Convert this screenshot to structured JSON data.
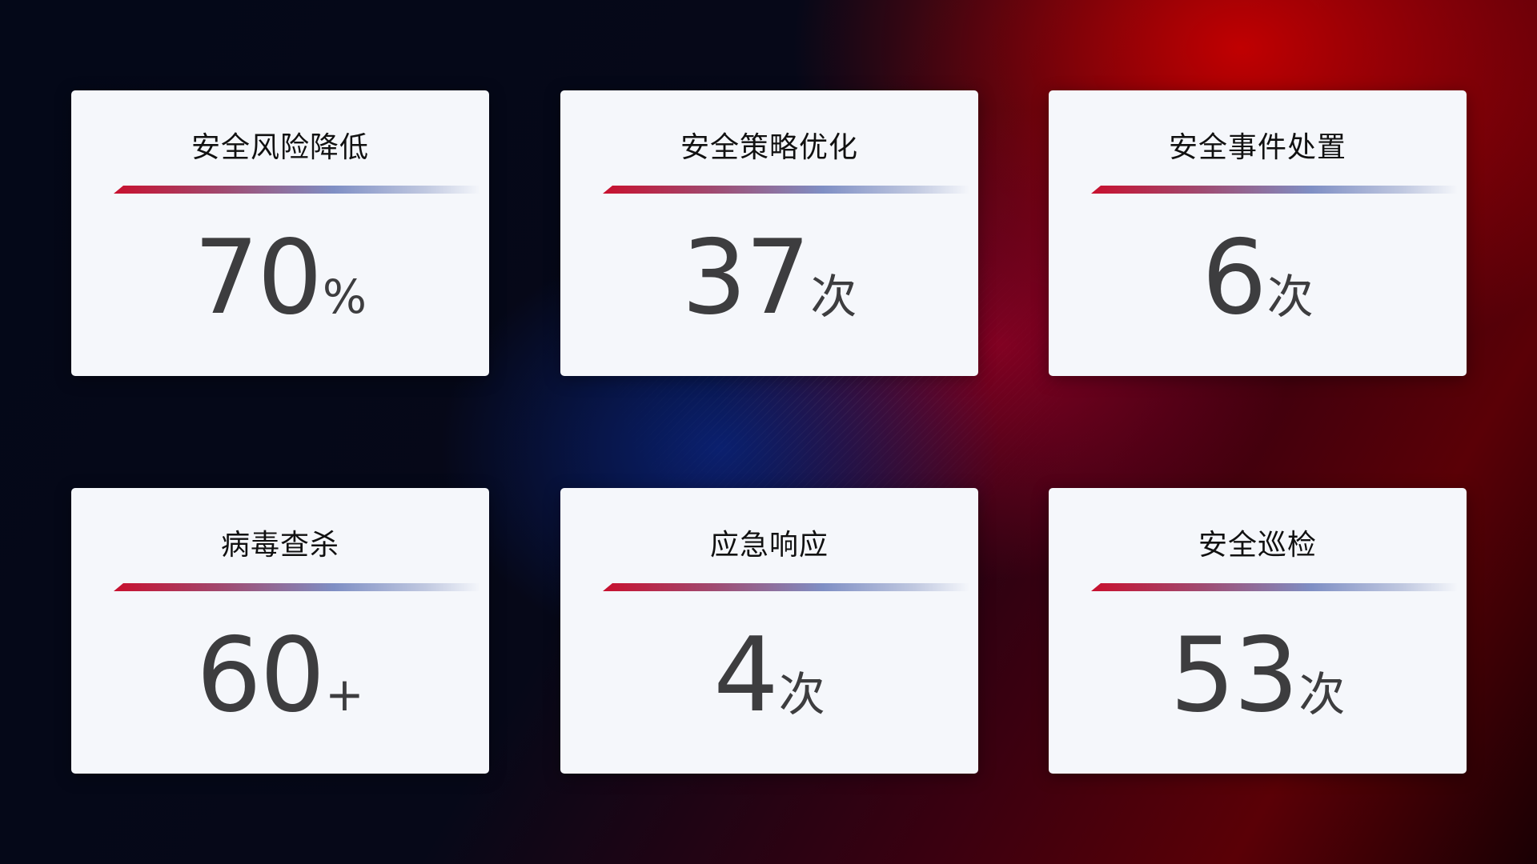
{
  "cards": [
    {
      "title": "安全风险降低",
      "value": "70",
      "unit": "%"
    },
    {
      "title": "安全策略优化",
      "value": "37",
      "unit": "次"
    },
    {
      "title": "安全事件处置",
      "value": "6",
      "unit": "次"
    },
    {
      "title": "病毒查杀",
      "value": "60",
      "unit": "+"
    },
    {
      "title": "应急响应",
      "value": "4",
      "unit": "次"
    },
    {
      "title": "安全巡检",
      "value": "53",
      "unit": "次"
    }
  ],
  "colors": {
    "accent_red": "#c8102e",
    "accent_blue": "#7f8fc4",
    "card_bg": "#f5f7fb",
    "value_text": "#3d3d3f"
  }
}
